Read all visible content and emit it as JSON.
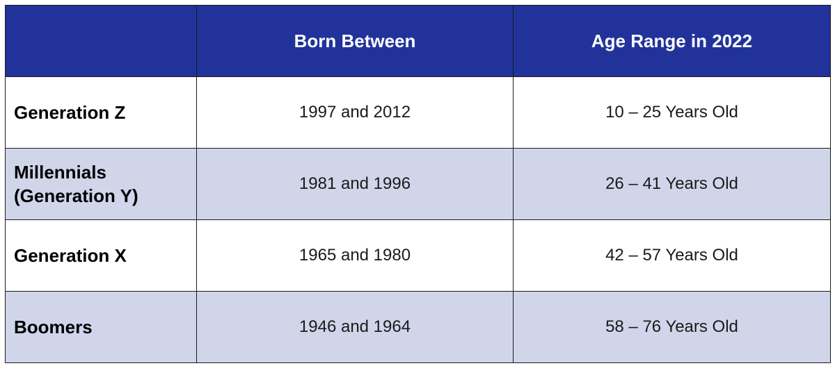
{
  "table": {
    "header": [
      "Born Between",
      "Age Range in 2022"
    ],
    "rows": [
      [
        "Generation Z",
        "1997 and 2012",
        "10 – 25 Years Old"
      ],
      [
        "Millennials (Generation Y)",
        "1981 and 1996",
        "26 – 41 Years Old"
      ],
      [
        "Generation X",
        "1965 and 1980",
        "42 – 57 Years Old"
      ],
      [
        "Boomers",
        "1946 and 1964",
        "58 – 76 Years Old"
      ]
    ]
  }
}
